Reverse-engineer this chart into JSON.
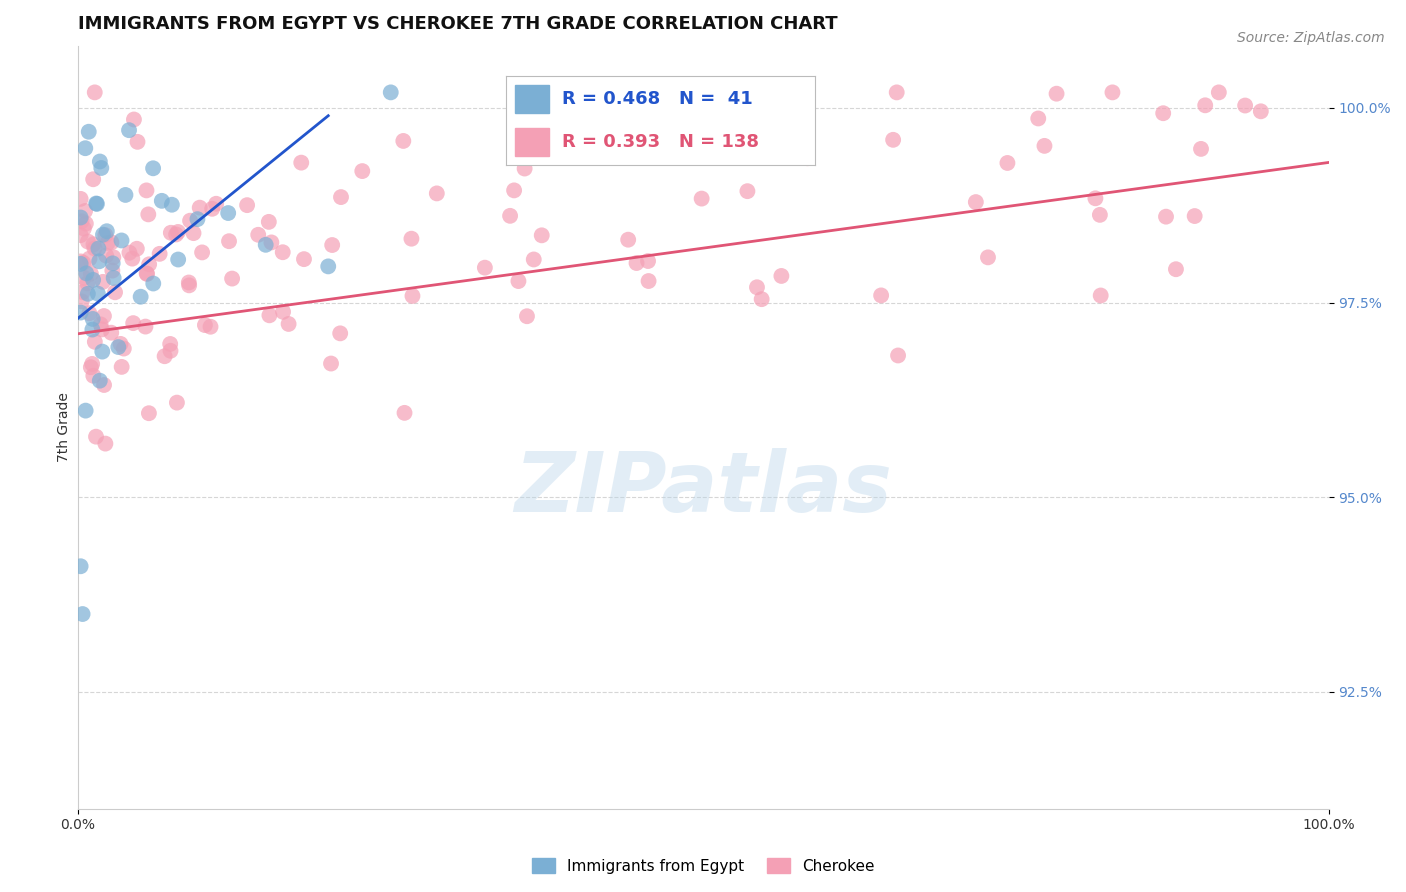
{
  "title": "IMMIGRANTS FROM EGYPT VS CHEROKEE 7TH GRADE CORRELATION CHART",
  "source_text": "Source: ZipAtlas.com",
  "ylabel": "7th Grade",
  "xlim": [
    0.0,
    100.0
  ],
  "ylim": [
    91.0,
    100.8
  ],
  "yticks": [
    92.5,
    95.0,
    97.5,
    100.0
  ],
  "yticklabels": [
    "92.5%",
    "95.0%",
    "97.5%",
    "100.0%"
  ],
  "xticks": [
    0.0,
    100.0
  ],
  "xticklabels": [
    "0.0%",
    "100.0%"
  ],
  "blue_R": 0.468,
  "blue_N": 41,
  "pink_R": 0.393,
  "pink_N": 138,
  "blue_color": "#7bafd4",
  "pink_color": "#f4a0b5",
  "blue_line_color": "#2255cc",
  "pink_line_color": "#e05575",
  "ytick_color": "#5588cc",
  "legend_label_blue": "Immigrants from Egypt",
  "legend_label_pink": "Cherokee",
  "watermark": "ZIPatlas",
  "background_color": "#ffffff",
  "grid_color": "#cccccc",
  "title_fontsize": 13,
  "axis_label_fontsize": 10,
  "tick_fontsize": 10,
  "legend_fontsize": 13,
  "source_fontsize": 10
}
